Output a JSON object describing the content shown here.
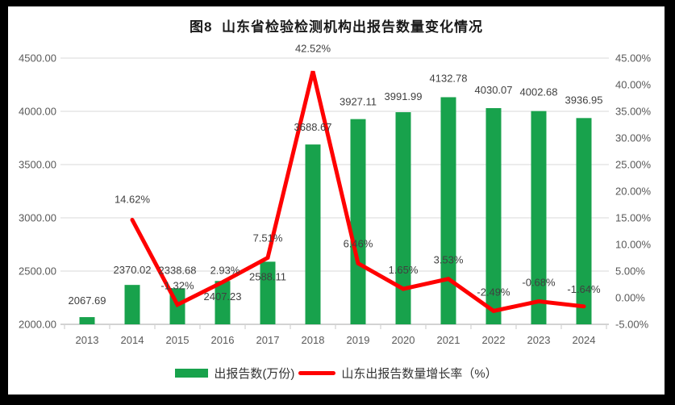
{
  "chart_data": {
    "type": "bar+line combo",
    "title": "图8  山东省检验检测机构出报告数量变化情况",
    "categories": [
      "2013",
      "2014",
      "2015",
      "2016",
      "2017",
      "2018",
      "2019",
      "2020",
      "2021",
      "2022",
      "2023",
      "2024"
    ],
    "series": [
      {
        "name": "出报告数(万份)",
        "type": "bar",
        "axis": "left",
        "color": "#18A24C",
        "values": [
          2067.69,
          2370.02,
          2338.68,
          2407.23,
          2588.11,
          3688.67,
          3927.11,
          3991.99,
          4132.78,
          4030.07,
          4002.68,
          3936.95
        ],
        "labels": [
          "2067.69",
          "2370.02",
          "2338.68",
          "2407.23",
          "2588.11",
          "3688.67",
          "3927.11",
          "3991.99",
          "4132.78",
          "4030.07",
          "4002.68",
          "3936.95"
        ]
      },
      {
        "name": "山东出报告数量增长率（%）",
        "type": "line",
        "axis": "right",
        "color": "#FF0000",
        "values": [
          null,
          14.62,
          -1.32,
          2.93,
          7.51,
          42.52,
          6.46,
          1.65,
          3.53,
          -2.49,
          -0.68,
          -1.64
        ],
        "labels": [
          "",
          "14.62%",
          "-1.32%",
          "2.93%",
          "7.51%",
          "42.52%",
          "6.46%",
          "1.65%",
          "3.53%",
          "-2.49%",
          "-0.68%",
          "-1.64%"
        ]
      }
    ],
    "left_axis": {
      "min": 2000,
      "max": 4500,
      "tick_labels": [
        "4500.00",
        "4000.00",
        "3500.00",
        "3000.00",
        "2500.00",
        "2000.00"
      ]
    },
    "right_axis": {
      "min": -5,
      "max": 45,
      "tick_labels": [
        "45.00%",
        "40.00%",
        "35.00%",
        "30.00%",
        "25.00%",
        "20.00%",
        "15.00%",
        "10.00%",
        "5.00%",
        "0.00%",
        "-5.00%"
      ]
    },
    "grid": true,
    "legend_position": "bottom"
  },
  "colors": {
    "frame": "#000000",
    "background": "#FFFFFF",
    "gridline": "#D9D9D9",
    "axis_line": "#D3D3D3",
    "tick_mark": "#C9C9C9",
    "axis_text": "#595959",
    "label_text": "#404040",
    "title_text": "#1A1A1A"
  }
}
